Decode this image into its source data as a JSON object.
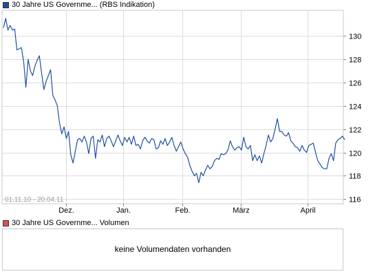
{
  "legend": {
    "price_label": "30 Jahre US Governme... (RBS Indikation)",
    "price_color": "#1f4fa0",
    "volume_label": "30 Jahre US Governme... Volumen",
    "volume_color": "#d9534f"
  },
  "volume": {
    "message": "keine Volumendaten vorhanden"
  },
  "chart_data": {
    "type": "line",
    "title": "",
    "date_range": "01.11.10 - 20.04.11",
    "x_ticks": [
      "Dez.",
      "Jan.",
      "Feb.",
      "März",
      "April"
    ],
    "y_ticks": [
      116,
      118,
      120,
      122,
      124,
      126,
      128,
      130
    ],
    "ylim": [
      115.6,
      132.2
    ],
    "grid": true,
    "y_axis_side": "right",
    "series": [
      {
        "line_color": "#1f4fa0",
        "values": [
          130.7,
          131.5,
          130.5,
          130.9,
          130.5,
          130.6,
          128.8,
          128.9,
          129.0,
          127.8,
          125.6,
          128.0,
          127.0,
          126.6,
          127.4,
          127.9,
          128.3,
          126.8,
          125.4,
          126.1,
          126.6,
          127.1,
          124.9,
          124.5,
          124.0,
          122.5,
          121.6,
          122.2,
          121.2,
          121.8,
          119.8,
          119.1,
          120.1,
          121.1,
          121.2,
          120.9,
          121.4,
          120.9,
          119.9,
          121.2,
          121.4,
          119.5,
          121.1,
          120.9,
          121.5,
          120.5,
          121.2,
          121.4,
          121.0,
          120.5,
          121.0,
          121.5,
          121.0,
          120.6,
          121.3,
          120.9,
          121.3,
          120.7,
          121.4,
          120.6,
          120.7,
          120.3,
          121.0,
          121.3,
          121.0,
          120.8,
          121.2,
          121.1,
          120.3,
          120.4,
          121.0,
          120.7,
          121.2,
          120.6,
          120.9,
          121.3,
          120.6,
          120.1,
          120.5,
          120.9,
          120.3,
          119.9,
          119.6,
          118.9,
          118.4,
          118.0,
          118.2,
          117.4,
          118.3,
          118.0,
          118.5,
          118.9,
          118.6,
          118.8,
          119.3,
          119.5,
          119.4,
          119.9,
          119.8,
          119.9,
          120.2,
          121.0,
          120.5,
          120.2,
          120.4,
          120.5,
          120.2,
          121.3,
          120.5,
          120.3,
          120.6,
          119.3,
          119.8,
          119.3,
          119.7,
          119.1,
          119.9,
          120.6,
          121.5,
          120.9,
          121.2,
          122.0,
          122.9,
          121.8,
          121.8,
          121.5,
          121.4,
          121.7,
          121.0,
          120.8,
          120.5,
          120.4,
          120.1,
          120.6,
          120.2,
          120.0,
          120.6,
          120.7,
          120.8,
          120.0,
          119.3,
          119.0,
          118.7,
          118.6,
          118.6,
          119.5,
          119.9,
          119.3,
          120.8,
          121.1,
          121.2,
          121.4,
          121.1
        ]
      }
    ]
  }
}
